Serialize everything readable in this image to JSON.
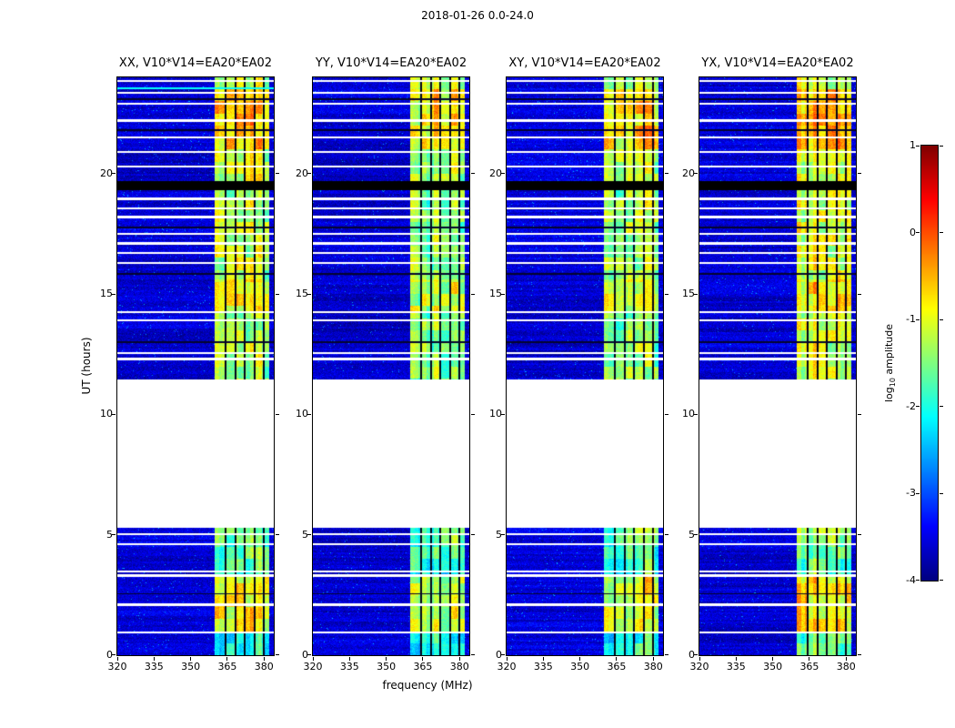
{
  "figure": {
    "title": "2018-01-26 0.0-24.0"
  },
  "chart_data": {
    "type": "heatmap",
    "title": "2018-01-26 0.0-24.0",
    "panels": [
      {
        "id": "xx",
        "title": "XX, V10*V14=EA20*EA02",
        "seed": 11,
        "level_offset": 0.0,
        "cyan_line_hours": [
          23.55
        ]
      },
      {
        "id": "yy",
        "title": "YY, V10*V14=EA20*EA02",
        "seed": 29,
        "level_offset": -0.25,
        "cyan_line_hours": []
      },
      {
        "id": "xy",
        "title": "XY, V10*V14=EA20*EA02",
        "seed": 47,
        "level_offset": -0.12,
        "cyan_line_hours": []
      },
      {
        "id": "yx",
        "title": "YX, V10*V14=EA20*EA02",
        "seed": 61,
        "level_offset": 0.12,
        "cyan_line_hours": []
      }
    ],
    "x_axis": {
      "label": "frequency (MHz)",
      "range": [
        320,
        384
      ],
      "ticks": [
        320,
        335,
        350,
        365,
        380
      ]
    },
    "y_axis": {
      "label": "UT (hours)",
      "range": [
        0,
        24
      ],
      "ticks": [
        0,
        5,
        10,
        15,
        20
      ]
    },
    "colorbar": {
      "label_prefix": "log",
      "label_sub": "10",
      "label_suffix": " amplitude",
      "range": [
        -4,
        1
      ],
      "ticks": [
        1,
        0,
        -1,
        -2,
        -3,
        -4
      ],
      "colormap": "jet"
    },
    "background_level": -3.6,
    "rfi_band": {
      "freq_range": [
        360,
        382
      ]
    },
    "band_profile": [
      {
        "hours": [
          0,
          0.95
        ],
        "level": -1.9
      },
      {
        "hours": [
          0.95,
          3.35
        ],
        "level": -0.9
      },
      {
        "hours": [
          3.35,
          4.6
        ],
        "level": -1.7
      },
      {
        "hours": [
          4.6,
          5.3
        ],
        "level": -1.4
      },
      {
        "hours": [
          11.45,
          14.3
        ],
        "level": -1.3
      },
      {
        "hours": [
          14.3,
          15.6
        ],
        "level": -0.9
      },
      {
        "hours": [
          15.6,
          19.3
        ],
        "level": -1.2
      },
      {
        "hours": [
          19.7,
          21.0
        ],
        "level": -1.1
      },
      {
        "hours": [
          21.0,
          23.5
        ],
        "level": -0.6
      },
      {
        "hours": [
          23.5,
          24.0
        ],
        "level": -1.2
      }
    ],
    "no_data_gap_hours": [
      5.3,
      11.45
    ],
    "black_band_hours": [
      19.3,
      19.7
    ],
    "white_line_hours": [
      0.95,
      2.1,
      3.3,
      3.48,
      4.6,
      5.02,
      12.3,
      12.55,
      13.9,
      14.25,
      16.3,
      16.7,
      17.1,
      17.5,
      18.2,
      18.55,
      18.95,
      20.3,
      20.9,
      21.5,
      22.2,
      22.9,
      23.35,
      23.85
    ],
    "dark_line_hours": [
      2.55,
      13.0,
      15.85,
      17.75,
      21.8,
      23.1
    ],
    "flagged_channels_mhz": [
      364.2,
      368.3,
      372.1,
      376.1,
      379.9
    ]
  }
}
